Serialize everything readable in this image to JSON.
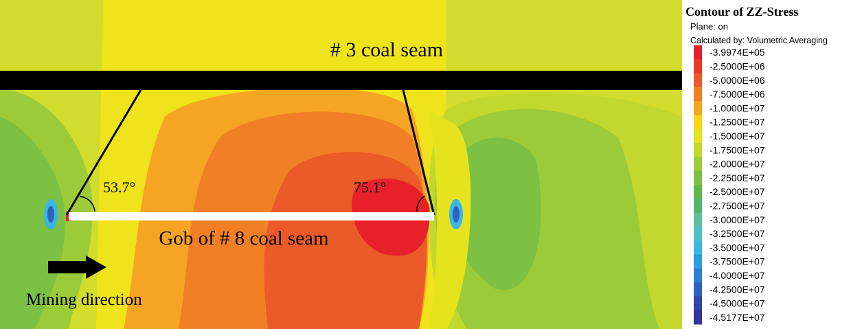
{
  "figure": {
    "labels": {
      "upper_seam": "# 3 coal seam",
      "gob": "Gob of # 8 coal seam",
      "left_angle": "53.7°",
      "right_angle": "75.1°",
      "direction": "Mining direction"
    },
    "legend": {
      "title": "Contour of ZZ-Stress",
      "plane": "Plane: on",
      "calculated_by": "Calculated by: Volumetric Averaging",
      "entries": [
        {
          "label": "-3.9974E+05",
          "color": "#e8202a"
        },
        {
          "label": "-2.5000E+06",
          "color": "#e93a28"
        },
        {
          "label": "-5.0000E+06",
          "color": "#eb5a29"
        },
        {
          "label": "-7.5000E+06",
          "color": "#f07f25"
        },
        {
          "label": "-1.0000E+07",
          "color": "#f6a423"
        },
        {
          "label": "-1.2500E+07",
          "color": "#f7d61a"
        },
        {
          "label": "-1.5000E+07",
          "color": "#e4e31e"
        },
        {
          "label": "-1.7500E+07",
          "color": "#c2d82e"
        },
        {
          "label": "-2.0000E+07",
          "color": "#9ccb3a"
        },
        {
          "label": "-2.2500E+07",
          "color": "#7cc044"
        },
        {
          "label": "-2.5000E+07",
          "color": "#5eb84a"
        },
        {
          "label": "-2.7500E+07",
          "color": "#4fb86a"
        },
        {
          "label": "-3.0000E+07",
          "color": "#5bbf9a"
        },
        {
          "label": "-3.2500E+07",
          "color": "#4fc1c4"
        },
        {
          "label": "-3.5000E+07",
          "color": "#3db6e5"
        },
        {
          "label": "-3.7500E+07",
          "color": "#2e9ce0"
        },
        {
          "label": "-4.0000E+07",
          "color": "#2b7fd0"
        },
        {
          "label": "-4.2500E+07",
          "color": "#2d63bf"
        },
        {
          "label": "-4.5000E+07",
          "color": "#3047a8"
        },
        {
          "label": "-4.5177E+07",
          "color": "#34349a"
        }
      ]
    }
  }
}
